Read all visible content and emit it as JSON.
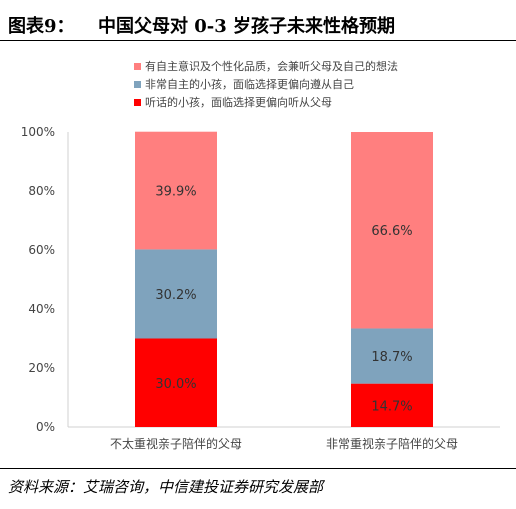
{
  "figure": {
    "label": "图表9：",
    "title": "中国父母对 0-3 岁孩子未来性格预期",
    "source": "资料来源：艾瑞咨询，中信建投证券研究发展部"
  },
  "chart_data": {
    "type": "bar",
    "stacked": true,
    "categories": [
      "不太重视亲子陪伴的父母",
      "非常重视亲子陪伴的父母"
    ],
    "series": [
      {
        "name": "听话的小孩，面临选择更偏向听从父母",
        "color": "#ff0000",
        "values": [
          30.0,
          14.7
        ],
        "labels": [
          "30.0%",
          "14.7%"
        ]
      },
      {
        "name": "非常自主的小孩，面临选择更偏向遵从自己",
        "color": "#7fa3bd",
        "values": [
          30.2,
          18.7
        ],
        "labels": [
          "30.2%",
          "18.7%"
        ]
      },
      {
        "name": "有自主意识及个性化品质，会兼听父母及自己的想法",
        "color": "#ff7f7f",
        "values": [
          39.9,
          66.6
        ],
        "labels": [
          "39.9%",
          "66.6%"
        ]
      }
    ],
    "ylim": [
      0,
      100
    ],
    "yticks": [
      "0%",
      "20%",
      "40%",
      "60%",
      "80%",
      "100%"
    ],
    "grid": false,
    "legend_position": "top"
  }
}
